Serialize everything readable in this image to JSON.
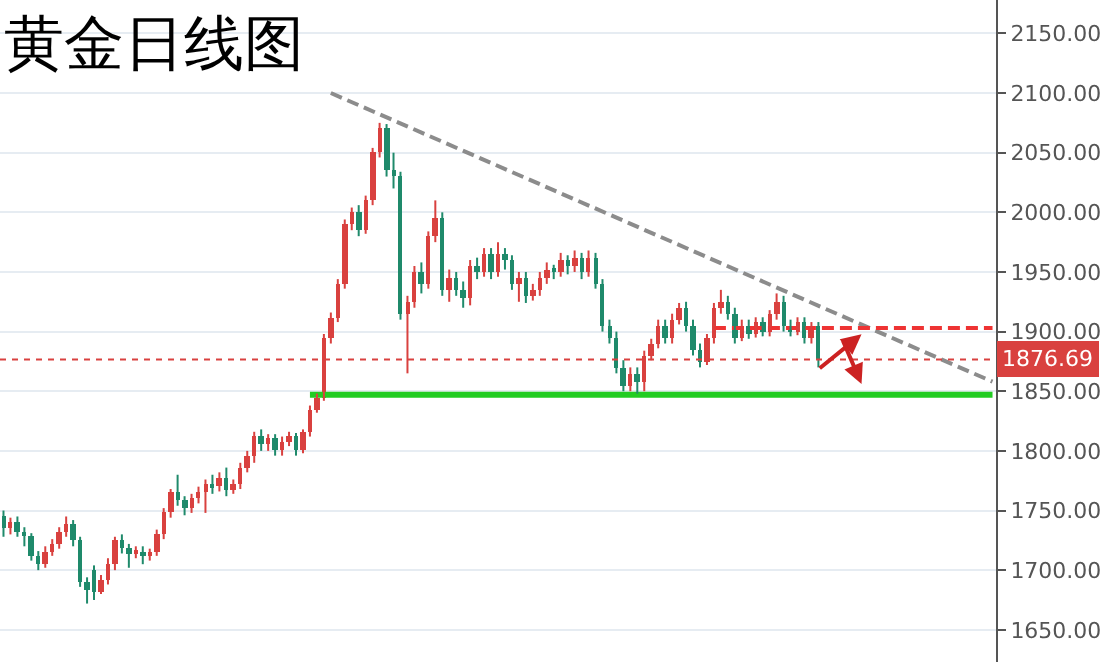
{
  "chart_data": {
    "type": "candlestick",
    "title": "黄金日线图",
    "categories": [
      null,
      null,
      null,
      null,
      null,
      null,
      null,
      null,
      null,
      null,
      null,
      null,
      null,
      null,
      null,
      null,
      null,
      null,
      null,
      null,
      null,
      null,
      null,
      null,
      null,
      null,
      null,
      null,
      null,
      null,
      null,
      null,
      null,
      null,
      null,
      null,
      null,
      null,
      null,
      null,
      null,
      null,
      null,
      null,
      null,
      null,
      null,
      null,
      null,
      null,
      null,
      null,
      null,
      null,
      null,
      null,
      null,
      null,
      null,
      null,
      null,
      null,
      null,
      null,
      null,
      null,
      null,
      null,
      null,
      null,
      null,
      null,
      null,
      null,
      null,
      null,
      null,
      null,
      null,
      null,
      null,
      null,
      null,
      null,
      null,
      null,
      null,
      null,
      null,
      null,
      null,
      null,
      null,
      null,
      null,
      null,
      null,
      null,
      null,
      null,
      null,
      null,
      null,
      null,
      null,
      null,
      null,
      null,
      null,
      null,
      null,
      null,
      null,
      null,
      null,
      null,
      null,
      null,
      null,
      null,
      null,
      null,
      null,
      null,
      null,
      null,
      null,
      null,
      null,
      null,
      null,
      null,
      null,
      null,
      null,
      null,
      null,
      null,
      null,
      null,
      null,
      null,
      null
    ],
    "ohlc": [
      [
        1745,
        1750,
        1728,
        1735
      ],
      [
        1735,
        1744,
        1730,
        1740
      ],
      [
        1740,
        1745,
        1728,
        1732
      ],
      [
        1732,
        1736,
        1720,
        1728
      ],
      [
        1728,
        1731,
        1708,
        1712
      ],
      [
        1712,
        1716,
        1700,
        1705
      ],
      [
        1705,
        1720,
        1702,
        1716
      ],
      [
        1716,
        1726,
        1712,
        1722
      ],
      [
        1722,
        1736,
        1718,
        1732
      ],
      [
        1732,
        1745,
        1728,
        1738
      ],
      [
        1738,
        1742,
        1720,
        1725
      ],
      [
        1725,
        1728,
        1686,
        1690
      ],
      [
        1690,
        1694,
        1672,
        1683
      ],
      [
        1700,
        1704,
        1675,
        1682
      ],
      [
        1682,
        1696,
        1680,
        1692
      ],
      [
        1692,
        1710,
        1688,
        1705
      ],
      [
        1705,
        1728,
        1700,
        1725
      ],
      [
        1725,
        1730,
        1714,
        1718
      ],
      [
        1718,
        1722,
        1702,
        1715
      ],
      [
        1715,
        1720,
        1710,
        1716
      ],
      [
        1716,
        1720,
        1705,
        1712
      ],
      [
        1712,
        1718,
        1708,
        1715
      ],
      [
        1715,
        1734,
        1712,
        1730
      ],
      [
        1730,
        1752,
        1726,
        1748
      ],
      [
        1748,
        1768,
        1744,
        1765
      ],
      [
        1765,
        1780,
        1754,
        1758
      ],
      [
        1758,
        1762,
        1746,
        1752
      ],
      [
        1752,
        1764,
        1748,
        1760
      ],
      [
        1760,
        1770,
        1756,
        1766
      ],
      [
        1766,
        1776,
        1748,
        1772
      ],
      [
        1772,
        1780,
        1764,
        1770
      ],
      [
        1770,
        1782,
        1766,
        1778
      ],
      [
        1778,
        1786,
        1762,
        1768
      ],
      [
        1768,
        1776,
        1764,
        1772
      ],
      [
        1772,
        1790,
        1768,
        1785
      ],
      [
        1785,
        1800,
        1782,
        1795
      ],
      [
        1795,
        1816,
        1790,
        1812
      ],
      [
        1812,
        1818,
        1800,
        1805
      ],
      [
        1805,
        1814,
        1800,
        1810
      ],
      [
        1810,
        1814,
        1796,
        1800
      ],
      [
        1800,
        1812,
        1796,
        1808
      ],
      [
        1808,
        1816,
        1804,
        1812
      ],
      [
        1812,
        1815,
        1796,
        1800
      ],
      [
        1800,
        1818,
        1798,
        1815
      ],
      [
        1815,
        1838,
        1812,
        1835
      ],
      [
        1835,
        1848,
        1832,
        1845
      ],
      [
        1845,
        1898,
        1842,
        1895
      ],
      [
        1895,
        1916,
        1890,
        1912
      ],
      [
        1912,
        1944,
        1908,
        1940
      ],
      [
        1940,
        1994,
        1936,
        1990
      ],
      [
        1990,
        2004,
        1985,
        2000
      ],
      [
        2000,
        2006,
        1980,
        1985
      ],
      [
        1985,
        2014,
        1982,
        2010
      ],
      [
        2010,
        2054,
        2006,
        2050
      ],
      [
        2050,
        2075,
        2046,
        2070
      ],
      [
        2070,
        2074,
        2030,
        2035
      ],
      [
        2035,
        2050,
        2020,
        2030
      ],
      [
        2030,
        2034,
        1910,
        1915
      ],
      [
        1915,
        1930,
        1865,
        1925
      ],
      [
        1925,
        1955,
        1920,
        1950
      ],
      [
        1950,
        1958,
        1932,
        1940
      ],
      [
        1940,
        1984,
        1936,
        1980
      ],
      [
        1980,
        2010,
        1975,
        1995
      ],
      [
        1995,
        2000,
        1930,
        1935
      ],
      [
        1935,
        1952,
        1925,
        1945
      ],
      [
        1945,
        1950,
        1930,
        1935
      ],
      [
        1935,
        1942,
        1920,
        1928
      ],
      [
        1928,
        1960,
        1922,
        1955
      ],
      [
        1955,
        1962,
        1944,
        1950
      ],
      [
        1950,
        1970,
        1946,
        1965
      ],
      [
        1965,
        1970,
        1944,
        1950
      ],
      [
        1950,
        1975,
        1946,
        1965
      ],
      [
        1965,
        1970,
        1952,
        1960
      ],
      [
        1960,
        1964,
        1935,
        1940
      ],
      [
        1940,
        1950,
        1925,
        1945
      ],
      [
        1945,
        1950,
        1924,
        1930
      ],
      [
        1930,
        1940,
        1926,
        1935
      ],
      [
        1935,
        1950,
        1930,
        1945
      ],
      [
        1945,
        1958,
        1940,
        1952
      ],
      [
        1952,
        1956,
        1944,
        1950
      ],
      [
        1950,
        1966,
        1946,
        1960
      ],
      [
        1960,
        1964,
        1948,
        1955
      ],
      [
        1955,
        1968,
        1950,
        1962
      ],
      [
        1962,
        1966,
        1944,
        1950
      ],
      [
        1950,
        1968,
        1946,
        1962
      ],
      [
        1962,
        1966,
        1936,
        1940
      ],
      [
        1940,
        1944,
        1900,
        1905
      ],
      [
        1905,
        1910,
        1890,
        1895
      ],
      [
        1895,
        1900,
        1865,
        1870
      ],
      [
        1870,
        1876,
        1850,
        1855
      ],
      [
        1855,
        1870,
        1850,
        1865
      ],
      [
        1865,
        1870,
        1848,
        1858
      ],
      [
        1858,
        1884,
        1850,
        1880
      ],
      [
        1880,
        1894,
        1876,
        1890
      ],
      [
        1890,
        1910,
        1886,
        1905
      ],
      [
        1905,
        1910,
        1890,
        1895
      ],
      [
        1895,
        1915,
        1890,
        1910
      ],
      [
        1910,
        1924,
        1906,
        1920
      ],
      [
        1920,
        1925,
        1900,
        1905
      ],
      [
        1905,
        1910,
        1880,
        1885
      ],
      [
        1885,
        1890,
        1870,
        1875
      ],
      [
        1875,
        1898,
        1872,
        1895
      ],
      [
        1895,
        1924,
        1890,
        1920
      ],
      [
        1920,
        1935,
        1915,
        1925
      ],
      [
        1925,
        1930,
        1910,
        1915
      ],
      [
        1915,
        1920,
        1890,
        1895
      ],
      [
        1895,
        1910,
        1892,
        1905
      ],
      [
        1905,
        1910,
        1894,
        1898
      ],
      [
        1898,
        1912,
        1895,
        1908
      ],
      [
        1908,
        1912,
        1896,
        1900
      ],
      [
        1900,
        1918,
        1896,
        1915
      ],
      [
        1915,
        1932,
        1910,
        1925
      ],
      [
        1925,
        1930,
        1900,
        1905
      ],
      [
        1905,
        1910,
        1896,
        1900
      ],
      [
        1900,
        1912,
        1897,
        1908
      ],
      [
        1908,
        1912,
        1890,
        1895
      ],
      [
        1895,
        1908,
        1890,
        1905
      ],
      [
        1905,
        1908,
        1870,
        1876.69
      ],
      null,
      null,
      null,
      null,
      null,
      null,
      null,
      null,
      null,
      null,
      null,
      null,
      null,
      null,
      null,
      null,
      null,
      null,
      null,
      null,
      null,
      null,
      null,
      null,
      null
    ],
    "colors": [
      "#1f8a6b",
      "#d9413f",
      "#1f8a6b",
      "#1f8a6b",
      "#1f8a6b",
      "#1f8a6b",
      "#d9413f",
      "#d9413f",
      "#d9413f",
      "#d9413f",
      "#1f8a6b",
      "#1f8a6b",
      "#1f8a6b",
      "#1f8a6b",
      "#d9413f",
      "#d9413f",
      "#d9413f",
      "#1f8a6b",
      "#1f8a6b",
      "#d9413f",
      "#1f8a6b",
      "#d9413f",
      "#d9413f",
      "#d9413f",
      "#d9413f",
      "#1f8a6b",
      "#1f8a6b",
      "#d9413f",
      "#d9413f",
      "#d9413f",
      "#1f8a6b",
      "#d9413f",
      "#1f8a6b",
      "#d9413f",
      "#d9413f",
      "#d9413f",
      "#d9413f",
      "#1f8a6b",
      "#d9413f",
      "#1f8a6b",
      "#d9413f",
      "#d9413f",
      "#1f8a6b",
      "#d9413f",
      "#d9413f",
      "#d9413f",
      "#d9413f",
      "#d9413f",
      "#d9413f",
      "#d9413f",
      "#d9413f",
      "#1f8a6b",
      "#d9413f",
      "#d9413f",
      "#d9413f",
      "#1f8a6b",
      "#1f8a6b",
      "#1f8a6b",
      "#d9413f",
      "#d9413f",
      "#1f8a6b",
      "#d9413f",
      "#d9413f",
      "#1f8a6b",
      "#d9413f",
      "#1f8a6b",
      "#1f8a6b",
      "#d9413f",
      "#1f8a6b",
      "#d9413f",
      "#1f8a6b",
      "#d9413f",
      "#1f8a6b",
      "#1f8a6b",
      "#d9413f",
      "#1f8a6b",
      "#d9413f",
      "#d9413f",
      "#d9413f",
      "#1f8a6b",
      "#d9413f",
      "#1f8a6b",
      "#d9413f",
      "#1f8a6b",
      "#d9413f",
      "#1f8a6b",
      "#1f8a6b",
      "#1f8a6b",
      "#1f8a6b",
      "#1f8a6b",
      "#d9413f",
      "#1f8a6b",
      "#d9413f",
      "#d9413f",
      "#d9413f",
      "#1f8a6b",
      "#d9413f",
      "#d9413f",
      "#1f8a6b",
      "#1f8a6b",
      "#1f8a6b",
      "#d9413f",
      "#d9413f",
      "#d9413f",
      "#1f8a6b",
      "#1f8a6b",
      "#d9413f",
      "#1f8a6b",
      "#d9413f",
      "#1f8a6b",
      "#d9413f",
      "#d9413f",
      "#1f8a6b",
      "#1f8a6b",
      "#d9413f",
      "#1f8a6b",
      "#d9413f",
      "#1f8a6b",
      null,
      null,
      null,
      null,
      null,
      null,
      null,
      null,
      null,
      null,
      null,
      null,
      null,
      null,
      null,
      null,
      null,
      null,
      null,
      null,
      null,
      null,
      null,
      null,
      null
    ],
    "series": [
      {
        "type": "line",
        "color": "#8c8c8c",
        "line_style": "dashed",
        "values": [
          null,
          null,
          null,
          null,
          null,
          null,
          null,
          null,
          null,
          null,
          null,
          null,
          null,
          null,
          null,
          null,
          null,
          null,
          null,
          null,
          null,
          null,
          null,
          null,
          null,
          null,
          null,
          null,
          null,
          null,
          null,
          null,
          null,
          null,
          null,
          null,
          null,
          null,
          null,
          null,
          null,
          null,
          null,
          null,
          null,
          null,
          null,
          2100,
          null,
          null,
          null,
          null,
          null,
          null,
          null,
          null,
          null,
          null,
          null,
          null,
          null,
          null,
          null,
          null,
          null,
          null,
          null,
          null,
          null,
          null,
          null,
          null,
          null,
          null,
          null,
          null,
          null,
          null,
          null,
          null,
          null,
          null,
          null,
          null,
          null,
          null,
          null,
          null,
          null,
          null,
          null,
          null,
          null,
          null,
          null,
          null,
          null,
          null,
          null,
          null,
          null,
          null,
          null,
          null,
          null,
          null,
          null,
          null,
          null,
          null,
          null,
          null,
          null,
          null,
          null,
          null,
          null,
          null,
          null,
          null,
          null,
          null,
          null,
          null,
          null,
          null,
          null,
          null,
          null,
          null,
          null,
          null,
          null,
          null,
          null,
          null,
          null,
          null,
          null,
          null,
          null,
          null,
          1858
        ]
      },
      {
        "type": "line",
        "color": "#22cc22",
        "line_style": "solid",
        "values": [
          null,
          null,
          null,
          null,
          null,
          null,
          null,
          null,
          null,
          null,
          null,
          null,
          null,
          null,
          null,
          null,
          null,
          null,
          null,
          null,
          null,
          null,
          null,
          null,
          null,
          null,
          null,
          null,
          null,
          null,
          null,
          null,
          null,
          null,
          null,
          null,
          null,
          null,
          null,
          null,
          null,
          null,
          null,
          null,
          1847,
          null,
          null,
          null,
          null,
          null,
          null,
          null,
          null,
          null,
          null,
          null,
          null,
          null,
          null,
          null,
          null,
          null,
          null,
          null,
          null,
          null,
          null,
          null,
          null,
          null,
          null,
          null,
          null,
          null,
          null,
          null,
          null,
          null,
          null,
          null,
          null,
          null,
          null,
          null,
          null,
          null,
          null,
          null,
          null,
          null,
          null,
          null,
          null,
          null,
          null,
          null,
          null,
          null,
          null,
          null,
          null,
          null,
          null,
          null,
          null,
          null,
          null,
          null,
          null,
          null,
          null,
          null,
          null,
          null,
          null,
          null,
          null,
          null,
          null,
          null,
          null,
          null,
          null,
          null,
          null,
          null,
          null,
          null,
          null,
          null,
          null,
          null,
          null,
          null,
          null,
          null,
          null,
          null,
          null,
          null,
          null,
          null,
          1847
        ]
      },
      {
        "type": "line",
        "color": "#ee3333",
        "line_style": "dashed",
        "values": [
          null,
          null,
          null,
          null,
          null,
          null,
          null,
          null,
          null,
          null,
          null,
          null,
          null,
          null,
          null,
          null,
          null,
          null,
          null,
          null,
          null,
          null,
          null,
          null,
          null,
          null,
          null,
          null,
          null,
          null,
          null,
          null,
          null,
          null,
          null,
          null,
          null,
          null,
          null,
          null,
          null,
          null,
          null,
          null,
          null,
          null,
          null,
          null,
          null,
          null,
          null,
          null,
          null,
          null,
          null,
          null,
          null,
          null,
          null,
          null,
          null,
          null,
          null,
          null,
          null,
          null,
          null,
          null,
          null,
          null,
          null,
          null,
          null,
          null,
          null,
          null,
          null,
          null,
          null,
          null,
          null,
          null,
          null,
          null,
          null,
          null,
          null,
          null,
          null,
          null,
          null,
          null,
          null,
          null,
          null,
          null,
          null,
          null,
          null,
          null,
          null,
          null,
          1903,
          null,
          null,
          null,
          null,
          null,
          null,
          null,
          null,
          null,
          null,
          null,
          null,
          null,
          null,
          null,
          null,
          null,
          null,
          null,
          null,
          null,
          null,
          null,
          null,
          null,
          null,
          null,
          null,
          null,
          null,
          null,
          null,
          null,
          null,
          null,
          null,
          null,
          null,
          null,
          1903
        ]
      }
    ],
    "ref_lines": [
      {
        "axis": "y",
        "value": 1876.69,
        "label": "1876.69",
        "color": "#d9413f",
        "line_style": "dotted"
      }
    ],
    "ylim": [
      1623,
      2178
    ],
    "yticks": [
      {
        "value": 1650,
        "label": "1650.00"
      },
      {
        "value": 1700,
        "label": "1700.00"
      },
      {
        "value": 1750,
        "label": "1750.00"
      },
      {
        "value": 1800,
        "label": "1800.00"
      },
      {
        "value": 1850,
        "label": "1850.00"
      },
      {
        "value": 1900,
        "label": "1900.00"
      },
      {
        "value": 1950,
        "label": "1950.00"
      },
      {
        "value": 2000,
        "label": "2000.00"
      },
      {
        "value": 2050,
        "label": "2050.00"
      },
      {
        "value": 2100,
        "label": "2100.00"
      },
      {
        "value": 2150,
        "label": "2150.00"
      }
    ],
    "grid": "y"
  }
}
